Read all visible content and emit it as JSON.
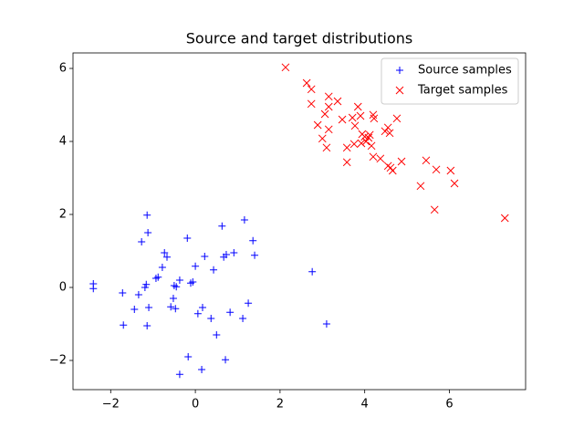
{
  "chart_data": {
    "type": "scatter",
    "title": "Source and target distributions",
    "xlim": [
      -2.89,
      7.8
    ],
    "ylim": [
      -2.8,
      6.425
    ],
    "xticks": [
      {
        "value": -2,
        "label": "−2"
      },
      0,
      2,
      4,
      6
    ],
    "yticks": [
      {
        "value": -2,
        "label": "−2"
      },
      0,
      2,
      4,
      6
    ],
    "legend": "upper right",
    "series": [
      {
        "name": "Source samples",
        "color": "#0000ff",
        "marker": "+",
        "x": [
          -2.41,
          -2.41,
          -1.14,
          -1.12,
          -1.27,
          -1.72,
          -1.7,
          -1.44,
          -1.34,
          -1.19,
          -1.16,
          -1.1,
          -1.14,
          -0.73,
          -0.67,
          -0.78,
          -0.88,
          -0.93,
          -0.19,
          -0.5,
          -0.45,
          -0.52,
          -0.58,
          -0.47,
          -0.37,
          -0.17,
          -0.37,
          0.0,
          -0.11,
          -0.06,
          0.06,
          0.17,
          0.15,
          0.37,
          0.22,
          0.43,
          0.5,
          0.63,
          0.71,
          0.67,
          0.73,
          0.91,
          0.82,
          1.12,
          1.16,
          1.25,
          1.36,
          1.4,
          2.76,
          3.1
        ],
        "y": [
          0.1,
          -0.03,
          1.98,
          1.5,
          1.25,
          -0.15,
          -1.03,
          -0.6,
          -0.2,
          0.0,
          0.08,
          -0.55,
          -1.05,
          0.95,
          0.83,
          0.55,
          0.28,
          0.25,
          1.35,
          0.05,
          0.02,
          -0.3,
          -0.53,
          -0.58,
          0.2,
          -1.9,
          -2.38,
          0.58,
          0.12,
          0.15,
          -0.72,
          -0.55,
          -2.25,
          -0.85,
          0.85,
          0.48,
          -1.3,
          1.68,
          -1.98,
          0.83,
          0.9,
          0.95,
          -0.68,
          -0.85,
          1.85,
          -0.43,
          1.28,
          0.88,
          0.43,
          -1.0
        ]
      },
      {
        "name": "Target samples",
        "color": "#ff0000",
        "marker": "x",
        "x": [
          2.13,
          2.63,
          2.74,
          2.74,
          3.15,
          3.15,
          3.06,
          3.36,
          2.89,
          3.15,
          3.0,
          3.1,
          3.47,
          3.58,
          3.58,
          3.71,
          3.84,
          3.77,
          3.9,
          3.94,
          4.0,
          4.03,
          4.09,
          3.92,
          3.75,
          4.16,
          4.12,
          4.2,
          4.22,
          4.2,
          4.37,
          4.48,
          4.55,
          4.59,
          4.76,
          4.87,
          4.55,
          4.66,
          4.61,
          5.45,
          5.32,
          5.69,
          5.65,
          6.03,
          6.12,
          7.31
        ],
        "y": [
          6.03,
          5.6,
          5.43,
          5.03,
          5.23,
          4.95,
          4.75,
          5.1,
          4.45,
          4.33,
          4.08,
          3.83,
          4.6,
          3.83,
          3.43,
          4.65,
          4.95,
          4.43,
          4.7,
          4.2,
          4.13,
          4.0,
          4.1,
          3.95,
          3.93,
          3.88,
          4.18,
          4.73,
          4.63,
          3.58,
          3.53,
          4.28,
          4.38,
          4.23,
          4.63,
          3.45,
          3.33,
          3.2,
          3.28,
          3.48,
          2.78,
          3.23,
          2.13,
          3.2,
          2.85,
          1.9
        ]
      }
    ]
  }
}
